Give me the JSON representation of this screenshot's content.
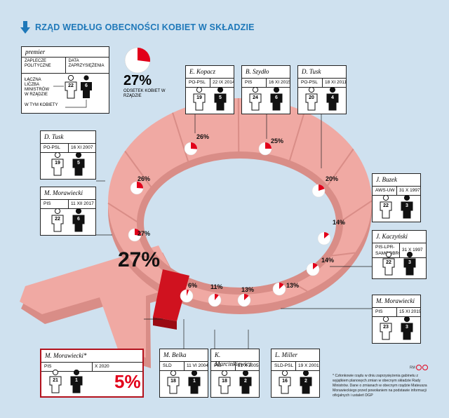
{
  "title": "RZĄD WEDŁUG OBECNOŚCI KOBIET W SKŁADZIE",
  "legend": {
    "pm_label": "premier",
    "col1": "ZAPLECZE POLITYCZNE",
    "col2": "DATA ZAPRZYSIĘŻENIA",
    "total_label": "ŁĄCZNA LICZBA MINISTRÓW W RZĄDZIE",
    "women_label": "W TYM KOBIETY",
    "total": "22",
    "women": "6",
    "pct": "27%",
    "pct_label": "ODSETEK KOBIET W RZĄDZIE"
  },
  "center_pct": "27%",
  "governments": [
    {
      "pm": "M. Morawiecki*",
      "party": "PIS",
      "date": "X 2020",
      "total": "21",
      "women": "1",
      "pct": "5%",
      "pct_value": 5
    },
    {
      "pm": "M. Belka",
      "party": "SLD",
      "date": "11 VI 2004",
      "total": "18",
      "women": "1",
      "pct": "6%",
      "pct_value": 6
    },
    {
      "pm": "K. Marcinkiewicz",
      "party": "PIS",
      "date": "31 X 2005",
      "total": "18",
      "women": "2",
      "pct": "11%",
      "pct_value": 11
    },
    {
      "pm": "L. Miller",
      "party": "SLD-PSL",
      "date": "19 X 2001",
      "total": "16",
      "women": "2",
      "pct": "13%",
      "pct_value": 13
    },
    {
      "pm": "M. Morawiecki",
      "party": "PIS",
      "date": "15 XI 2019",
      "total": "23",
      "women": "3",
      "pct": "13%",
      "pct_value": 13
    },
    {
      "pm": "J. Kaczyński",
      "party": "PIS-LPR-SAMOOBRONA",
      "date": "31 X 1997",
      "total": "22",
      "women": "3",
      "pct": "14%",
      "pct_value": 14
    },
    {
      "pm": "J. Buzek",
      "party": "AWS-UW",
      "date": "31 X 1997",
      "total": "22",
      "women": "3",
      "pct": "14%",
      "pct_value": 14
    },
    {
      "pm": "D. Tusk",
      "party": "PO-PSL",
      "date": "18 XI 2011",
      "total": "20",
      "women": "4",
      "pct": "20%",
      "pct_value": 20
    },
    {
      "pm": "B. Szydło",
      "party": "PIS",
      "date": "16 XI 2015",
      "total": "24",
      "women": "6",
      "pct": "25%",
      "pct_value": 25
    },
    {
      "pm": "E. Kopacz",
      "party": "PO-PSL",
      "date": "22 IX 2014",
      "total": "19",
      "women": "5",
      "pct": "26%",
      "pct_value": 26
    },
    {
      "pm": "D. Tusk",
      "party": "PO-PSL",
      "date": "16 XI 2007",
      "total": "19",
      "women": "5",
      "pct": "26%",
      "pct_value": 26
    },
    {
      "pm": "M. Morawiecki",
      "party": "PIS",
      "date": "11 XII 2017",
      "total": "22",
      "women": "6",
      "pct": "27%",
      "pct_value": 27
    }
  ],
  "footnote": "* Członkowie rządu w dniu zaprzysiężenia gabinetu z wyjątkiem planowych zmian w obecnym składzie Rady Ministrów. Dane o zmianach w obecnym rządzie Mateusza Morawieckiego przed powołaniem na podstawie informacji oficjalnych i ustaleń DGP",
  "credit": "RM",
  "colors": {
    "accent": "#e2001a",
    "title_blue": "#1e78b9",
    "background": "#cfe1ef",
    "ring": "#f0a9a3",
    "ring_dark": "#d98d87",
    "highlight": "#d0121f"
  }
}
